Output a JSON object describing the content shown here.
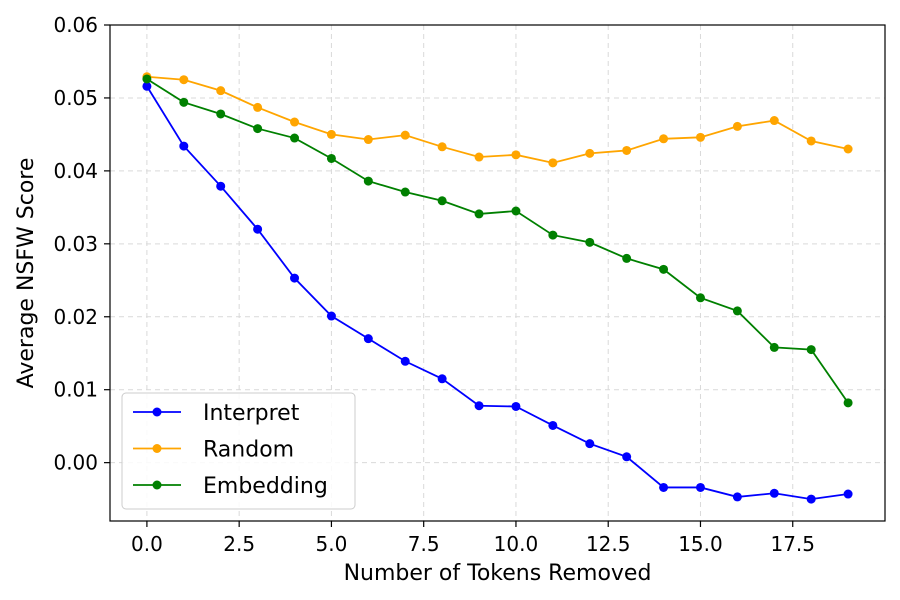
{
  "chart_data": {
    "type": "line",
    "xlabel": "Number of Tokens Removed",
    "ylabel": "Average NSFW Score",
    "xlim": [
      -1,
      20
    ],
    "ylim": [
      -0.008,
      0.06
    ],
    "xticks": [
      0,
      2.5,
      5,
      7.5,
      10,
      12.5,
      15,
      17.5
    ],
    "xtick_labels": [
      "0.0",
      "2.5",
      "5.0",
      "7.5",
      "10.0",
      "12.5",
      "15.0",
      "17.5"
    ],
    "yticks": [
      0,
      0.01,
      0.02,
      0.03,
      0.04,
      0.05,
      0.06
    ],
    "ytick_labels": [
      "0.00",
      "0.01",
      "0.02",
      "0.03",
      "0.04",
      "0.05",
      "0.06"
    ],
    "grid": true,
    "legend_position": "lower-left",
    "x": [
      0,
      1,
      2,
      3,
      4,
      5,
      6,
      7,
      8,
      9,
      10,
      11,
      12,
      13,
      14,
      15,
      16,
      17,
      18,
      19
    ],
    "series": [
      {
        "name": "Interpret",
        "color": "#0000ff",
        "values": [
          0.0516,
          0.0434,
          0.0379,
          0.032,
          0.0253,
          0.0201,
          0.017,
          0.0139,
          0.0115,
          0.0078,
          0.0077,
          0.0051,
          0.0026,
          0.0008,
          -0.0034,
          -0.0034,
          -0.0047,
          -0.0042,
          -0.005,
          -0.0043
        ]
      },
      {
        "name": "Random",
        "color": "#ffa500",
        "values": [
          0.0529,
          0.0525,
          0.051,
          0.0487,
          0.0467,
          0.045,
          0.0443,
          0.0449,
          0.0433,
          0.0419,
          0.0422,
          0.0411,
          0.0424,
          0.0428,
          0.0444,
          0.0446,
          0.0461,
          0.0469,
          0.0441,
          0.043
        ]
      },
      {
        "name": "Embedding",
        "color": "#008000",
        "values": [
          0.0526,
          0.0494,
          0.0478,
          0.0458,
          0.0445,
          0.0417,
          0.0386,
          0.0371,
          0.0359,
          0.0341,
          0.0345,
          0.0312,
          0.0302,
          0.028,
          0.0265,
          0.0226,
          0.0208,
          0.0158,
          0.0155,
          0.0082
        ]
      }
    ]
  }
}
